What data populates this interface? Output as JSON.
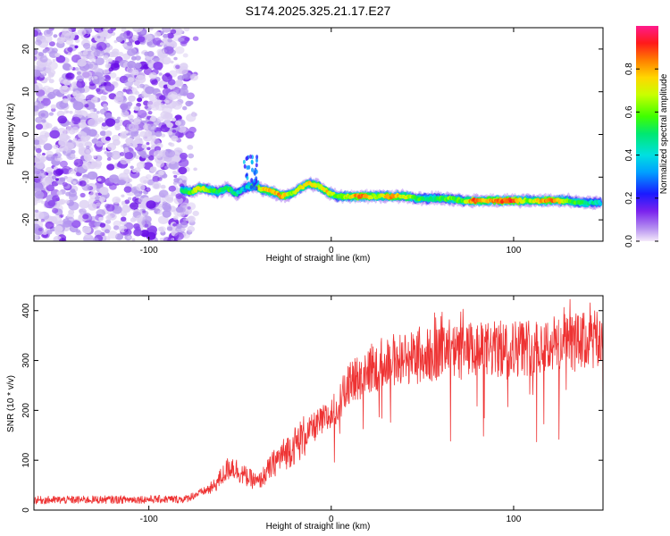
{
  "title": "S174.2025.325.21.17.E27",
  "chart_data": [
    {
      "type": "heatmap",
      "name": "spectrogram",
      "xlabel": "Height of straight line (km)",
      "ylabel": "Frequency (Hz)",
      "xlim": [
        -163,
        149
      ],
      "ylim": [
        -25,
        25
      ],
      "xticks": [
        -100,
        0,
        100
      ],
      "yticks": [
        -20,
        -10,
        0,
        10,
        20
      ],
      "noise_region_x": [
        -163,
        -80
      ],
      "track": [
        {
          "x": -82,
          "y": -13.0,
          "a": 0.5
        },
        {
          "x": -77,
          "y": -13.5,
          "a": 0.55
        },
        {
          "x": -72,
          "y": -12.5,
          "a": 0.75
        },
        {
          "x": -67,
          "y": -13.0,
          "a": 0.6
        },
        {
          "x": -62,
          "y": -13.5,
          "a": 0.5
        },
        {
          "x": -57,
          "y": -12.5,
          "a": 0.55
        },
        {
          "x": -52,
          "y": -14.0,
          "a": 0.45
        },
        {
          "x": -47,
          "y": -12.5,
          "a": 0.35
        },
        {
          "x": -42,
          "y": -12.0,
          "a": 0.6
        },
        {
          "x": -37,
          "y": -13.0,
          "a": 0.75
        },
        {
          "x": -32,
          "y": -13.5,
          "a": 0.8
        },
        {
          "x": -27,
          "y": -14.5,
          "a": 0.8
        },
        {
          "x": -22,
          "y": -14.0,
          "a": 0.65
        },
        {
          "x": -17,
          "y": -12.5,
          "a": 0.7
        },
        {
          "x": -12,
          "y": -11.5,
          "a": 0.75
        },
        {
          "x": -7,
          "y": -12.0,
          "a": 0.7
        },
        {
          "x": -2,
          "y": -13.5,
          "a": 0.75
        },
        {
          "x": 3,
          "y": -14.5,
          "a": 0.6
        },
        {
          "x": 10,
          "y": -14.5,
          "a": 0.7
        },
        {
          "x": 17,
          "y": -14.5,
          "a": 0.9
        },
        {
          "x": 25,
          "y": -14.5,
          "a": 0.6
        },
        {
          "x": 32,
          "y": -14.5,
          "a": 0.85
        },
        {
          "x": 40,
          "y": -14.5,
          "a": 0.7
        },
        {
          "x": 48,
          "y": -15.0,
          "a": 0.55
        },
        {
          "x": 56,
          "y": -15.0,
          "a": 0.5
        },
        {
          "x": 64,
          "y": -15.0,
          "a": 0.6
        },
        {
          "x": 72,
          "y": -15.5,
          "a": 0.55
        },
        {
          "x": 78,
          "y": -15.5,
          "a": 0.9
        },
        {
          "x": 85,
          "y": -15.5,
          "a": 0.75
        },
        {
          "x": 92,
          "y": -15.5,
          "a": 0.85
        },
        {
          "x": 100,
          "y": -15.5,
          "a": 0.9
        },
        {
          "x": 108,
          "y": -15.5,
          "a": 0.6
        },
        {
          "x": 115,
          "y": -15.5,
          "a": 0.8
        },
        {
          "x": 122,
          "y": -15.5,
          "a": 0.85
        },
        {
          "x": 130,
          "y": -15.5,
          "a": 0.6
        },
        {
          "x": 137,
          "y": -16.0,
          "a": 0.55
        },
        {
          "x": 143,
          "y": -16.0,
          "a": 0.45
        },
        {
          "x": 148,
          "y": -16.0,
          "a": 0.4
        }
      ],
      "colorbar": {
        "label": "Normalized spectral amplitude",
        "ticks": [
          0.0,
          0.2,
          0.4,
          0.6,
          0.8
        ],
        "tick_labels": [
          "0.0",
          "0.2",
          "0.4",
          "0.6",
          "0.8"
        ],
        "range": [
          0,
          1
        ]
      }
    },
    {
      "type": "line",
      "name": "snr",
      "xlabel": "Height of straight line (km)",
      "ylabel": "SNR (10 * v/v)",
      "xlim": [
        -163,
        149
      ],
      "ylim": [
        0,
        430
      ],
      "xticks": [
        -100,
        0,
        100
      ],
      "yticks": [
        0,
        100,
        200,
        300,
        400
      ],
      "color": "#ee3333",
      "trend": [
        {
          "x": -163,
          "y": 20
        },
        {
          "x": -80,
          "y": 22
        },
        {
          "x": -75,
          "y": 30
        },
        {
          "x": -65,
          "y": 45
        },
        {
          "x": -55,
          "y": 90
        },
        {
          "x": -48,
          "y": 70
        },
        {
          "x": -40,
          "y": 55
        },
        {
          "x": -30,
          "y": 100
        },
        {
          "x": -20,
          "y": 130
        },
        {
          "x": -10,
          "y": 165
        },
        {
          "x": 0,
          "y": 190
        },
        {
          "x": 10,
          "y": 250
        },
        {
          "x": 20,
          "y": 280
        },
        {
          "x": 30,
          "y": 300
        },
        {
          "x": 50,
          "y": 310
        },
        {
          "x": 70,
          "y": 315
        },
        {
          "x": 100,
          "y": 325
        },
        {
          "x": 130,
          "y": 335
        },
        {
          "x": 149,
          "y": 340
        }
      ]
    }
  ]
}
